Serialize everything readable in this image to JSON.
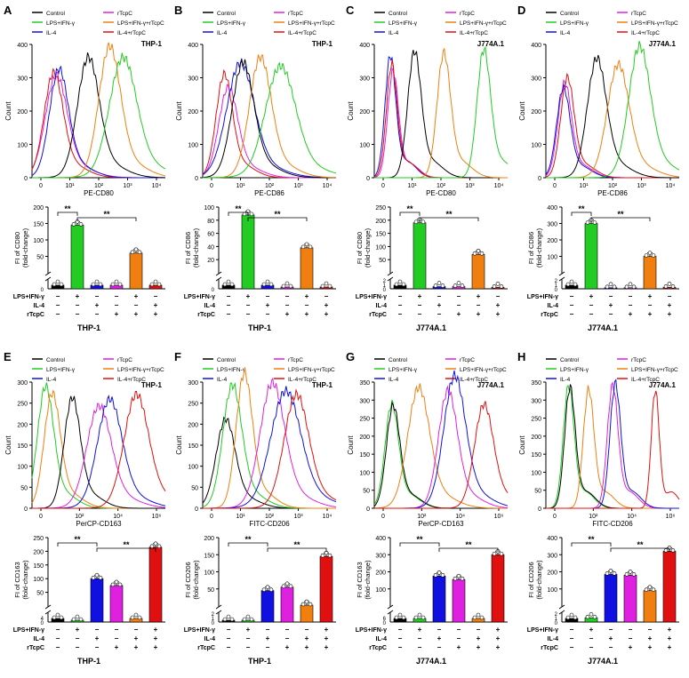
{
  "figure": {
    "colors": {
      "control": "#000000",
      "rtcpc": "#e020e0",
      "lps": "#22cc22",
      "lps_rtcpc": "#f07f10",
      "il4": "#1010e0",
      "il4_rtcpc": "#e01010"
    },
    "treatment_labels": [
      "LPS+IFN-γ",
      "IL-4",
      "rTcpC"
    ],
    "treatment_matrix": [
      [
        "−",
        "+",
        "−",
        "−",
        "+",
        "−"
      ],
      [
        "−",
        "−",
        "+",
        "−",
        "−",
        "+"
      ],
      [
        "−",
        "−",
        "−",
        "+",
        "+",
        "+"
      ]
    ],
    "treatment_matrix_m2": [
      [
        "−",
        "+",
        "−",
        "−",
        "−",
        "+"
      ],
      [
        "−",
        "−",
        "+",
        "−",
        "+",
        "+"
      ],
      [
        "−",
        "−",
        "−",
        "+",
        "+",
        "+"
      ]
    ],
    "significance": "**"
  },
  "chart_data": [
    {
      "panel": "A",
      "type": "line",
      "cell": "THP-1",
      "xlabel": "PE-CD80",
      "ylabel": "Count",
      "ylim": [
        0,
        400
      ],
      "yticks": [
        "0",
        "100",
        "200",
        "300",
        "400"
      ],
      "xticks": [
        "0",
        "10¹",
        "10²",
        "10³",
        "10⁴"
      ],
      "legend": [
        {
          "name": "Control",
          "color": "#000000"
        },
        {
          "name": "rTcpC",
          "color": "#e020e0"
        },
        {
          "name": "LPS+IFN-γ",
          "color": "#22cc22"
        },
        {
          "name": "LPS+IFN-γ+rTcpC",
          "color": "#f07f10"
        },
        {
          "name": "IL-4",
          "color": "#1010e0"
        },
        {
          "name": "IL-4+rTcpC",
          "color": "#e01010"
        }
      ],
      "peaks": [
        {
          "color": "#e020e0",
          "pos": 0.18,
          "h": 280,
          "w": 0.08
        },
        {
          "color": "#e01010",
          "pos": 0.16,
          "h": 290,
          "w": 0.07
        },
        {
          "color": "#1010e0",
          "pos": 0.2,
          "h": 300,
          "w": 0.07
        },
        {
          "color": "#000000",
          "pos": 0.42,
          "h": 330,
          "w": 0.08
        },
        {
          "color": "#f07f10",
          "pos": 0.58,
          "h": 360,
          "w": 0.08
        },
        {
          "color": "#22cc22",
          "pos": 0.68,
          "h": 325,
          "w": 0.1
        }
      ]
    },
    {
      "panel": "A",
      "type": "bar",
      "cell": "THP-1",
      "ylabel": "FI of CD80\n(fold-change)",
      "yticks_top": [
        "50",
        "100",
        "150",
        "200"
      ],
      "ylim_top": [
        0,
        200
      ],
      "yticks_bottom": [
        "0"
      ],
      "values": [
        1,
        145,
        1,
        1,
        60,
        1
      ],
      "sig": [
        {
          "from": 0,
          "to": 1,
          "label": "**"
        },
        {
          "from": 1,
          "to": 4,
          "label": "**"
        }
      ]
    },
    {
      "panel": "B",
      "type": "line",
      "cell": "THP-1",
      "xlabel": "PE-CD86",
      "ylabel": "Count",
      "ylim": [
        0,
        400
      ],
      "yticks": [
        "0",
        "100",
        "200",
        "300",
        "400"
      ],
      "xticks": [
        "0",
        "10¹",
        "10²",
        "10³",
        "10⁴"
      ],
      "legend": [
        {
          "name": "Control",
          "color": "#000000"
        },
        {
          "name": "rTcpC",
          "color": "#e020e0"
        },
        {
          "name": "LPS+IFN-γ",
          "color": "#22cc22"
        },
        {
          "name": "LPS+IFN-γ+rTcpC",
          "color": "#f07f10"
        },
        {
          "name": "IL-4",
          "color": "#1010e0"
        },
        {
          "name": "IL-4+rTcpC",
          "color": "#e01010"
        }
      ],
      "peaks": [
        {
          "color": "#e01010",
          "pos": 0.16,
          "h": 290,
          "w": 0.06
        },
        {
          "color": "#e020e0",
          "pos": 0.19,
          "h": 250,
          "w": 0.07
        },
        {
          "color": "#1010e0",
          "pos": 0.28,
          "h": 310,
          "w": 0.1
        },
        {
          "color": "#000000",
          "pos": 0.3,
          "h": 315,
          "w": 0.08
        },
        {
          "color": "#f07f10",
          "pos": 0.43,
          "h": 330,
          "w": 0.08
        },
        {
          "color": "#22cc22",
          "pos": 0.58,
          "h": 300,
          "w": 0.11
        }
      ]
    },
    {
      "panel": "B",
      "type": "bar",
      "cell": "THP-1",
      "ylabel": "FI of CD86\n(fold-change)",
      "yticks_top": [
        "20",
        "40",
        "60",
        "80",
        "100"
      ],
      "ylim_top": [
        0,
        100
      ],
      "yticks_bottom": [
        "0"
      ],
      "values": [
        1,
        88,
        1,
        0.5,
        38,
        0.5
      ],
      "sig": [
        {
          "from": 0,
          "to": 1,
          "label": "**"
        },
        {
          "from": 1,
          "to": 4,
          "label": "**"
        }
      ]
    },
    {
      "panel": "C",
      "type": "line",
      "cell": "J774A.1",
      "xlabel": "PE-CD80",
      "ylabel": "Count",
      "ylim": [
        0,
        400
      ],
      "yticks": [
        "0",
        "100",
        "200",
        "300",
        "400"
      ],
      "xticks": [
        "0",
        "10¹",
        "10²",
        "10³",
        "10⁴"
      ],
      "legend": [
        {
          "name": "Control",
          "color": "#000000"
        },
        {
          "name": "rTcpC",
          "color": "#e020e0"
        },
        {
          "name": "LPS+IFN-γ",
          "color": "#22cc22"
        },
        {
          "name": "LPS+IFN-γ+rTcpC",
          "color": "#f07f10"
        },
        {
          "name": "IL-4",
          "color": "#1010e0"
        },
        {
          "name": "IL-4+rTcpC",
          "color": "#e01010"
        }
      ],
      "peaks": [
        {
          "color": "#1010e0",
          "pos": 0.12,
          "h": 355,
          "w": 0.04
        },
        {
          "color": "#e020e0",
          "pos": 0.14,
          "h": 310,
          "w": 0.04
        },
        {
          "color": "#e01010",
          "pos": 0.13,
          "h": 330,
          "w": 0.04
        },
        {
          "color": "#000000",
          "pos": 0.3,
          "h": 360,
          "w": 0.05
        },
        {
          "color": "#f07f10",
          "pos": 0.52,
          "h": 355,
          "w": 0.05
        },
        {
          "color": "#22cc22",
          "pos": 0.82,
          "h": 365,
          "w": 0.05
        }
      ]
    },
    {
      "panel": "C",
      "type": "bar",
      "cell": "J774A.1",
      "ylabel": "FI of CD80\n(fold-change)",
      "yticks_top": [
        "50",
        "100",
        "150",
        "200",
        "250"
      ],
      "ylim_top": [
        0,
        250
      ],
      "yticks_bottom": [
        "0",
        "1",
        "2"
      ],
      "values": [
        1,
        190,
        0.6,
        0.6,
        70,
        0.4
      ],
      "sig": [
        {
          "from": 0,
          "to": 1,
          "label": "**"
        },
        {
          "from": 1,
          "to": 4,
          "label": "**"
        }
      ]
    },
    {
      "panel": "D",
      "type": "line",
      "cell": "J774A.1",
      "xlabel": "PE-CD86",
      "ylabel": "Count",
      "ylim": [
        0,
        400
      ],
      "yticks": [
        "0",
        "100",
        "200",
        "300",
        "400"
      ],
      "xticks": [
        "0",
        "10¹",
        "10²",
        "10³",
        "10⁴"
      ],
      "legend": [
        {
          "name": "Control",
          "color": "#000000"
        },
        {
          "name": "rTcpC",
          "color": "#e020e0"
        },
        {
          "name": "LPS+IFN-γ",
          "color": "#22cc22"
        },
        {
          "name": "LPS+IFN-γ+rTcpC",
          "color": "#f07f10"
        },
        {
          "name": "IL-4",
          "color": "#1010e0"
        },
        {
          "name": "IL-4+rTcpC",
          "color": "#e01010"
        }
      ],
      "peaks": [
        {
          "color": "#e020e0",
          "pos": 0.14,
          "h": 270,
          "w": 0.05
        },
        {
          "color": "#1010e0",
          "pos": 0.13,
          "h": 255,
          "w": 0.05
        },
        {
          "color": "#e01010",
          "pos": 0.16,
          "h": 285,
          "w": 0.05
        },
        {
          "color": "#000000",
          "pos": 0.38,
          "h": 330,
          "w": 0.07
        },
        {
          "color": "#f07f10",
          "pos": 0.54,
          "h": 310,
          "w": 0.08
        },
        {
          "color": "#22cc22",
          "pos": 0.7,
          "h": 360,
          "w": 0.08
        }
      ]
    },
    {
      "panel": "D",
      "type": "bar",
      "cell": "J774A.1",
      "ylabel": "FI of CD86\n(fold-change)",
      "yticks_top": [
        "100",
        "200",
        "300",
        "400"
      ],
      "ylim_top": [
        0,
        400
      ],
      "yticks_bottom": [
        "0",
        "1",
        "2"
      ],
      "values": [
        1,
        300,
        0.3,
        0.3,
        100,
        0.4
      ],
      "sig": [
        {
          "from": 0,
          "to": 1,
          "label": "**"
        },
        {
          "from": 1,
          "to": 4,
          "label": "**"
        }
      ]
    },
    {
      "panel": "E",
      "type": "line",
      "cell": "THP-1",
      "xlabel": "PerCP-CD163",
      "ylabel": "Count",
      "ylim": [
        0,
        300
      ],
      "yticks": [
        "0",
        "50",
        "100",
        "150",
        "200",
        "250",
        "300"
      ],
      "xticks": [
        "0",
        "10²",
        "10⁴",
        "10⁶"
      ],
      "legend": [
        {
          "name": "Control",
          "color": "#000000"
        },
        {
          "name": "rTcpC",
          "color": "#e020e0"
        },
        {
          "name": "LPS+IFN-γ",
          "color": "#22cc22"
        },
        {
          "name": "LPS+IFN-γ+rTcpC",
          "color": "#f07f10"
        },
        {
          "name": "IL-4",
          "color": "#1010e0"
        },
        {
          "name": "IL-4+rTcpC",
          "color": "#e01010"
        }
      ],
      "peaks": [
        {
          "color": "#22cc22",
          "pos": 0.1,
          "h": 270,
          "w": 0.06
        },
        {
          "color": "#f07f10",
          "pos": 0.15,
          "h": 255,
          "w": 0.06
        },
        {
          "color": "#000000",
          "pos": 0.3,
          "h": 245,
          "w": 0.06
        },
        {
          "color": "#e020e0",
          "pos": 0.5,
          "h": 220,
          "w": 0.09
        },
        {
          "color": "#1010e0",
          "pos": 0.58,
          "h": 235,
          "w": 0.09
        },
        {
          "color": "#e01010",
          "pos": 0.78,
          "h": 245,
          "w": 0.09
        }
      ]
    },
    {
      "panel": "E",
      "type": "bar",
      "cell": "THP-1",
      "ylabel": "FI of CD163\n(fold-change)",
      "yticks_top": [
        "50",
        "100",
        "150",
        "200",
        "250"
      ],
      "ylim_top": [
        0,
        250
      ],
      "yticks_bottom": [
        "0",
        "4"
      ],
      "values": [
        1,
        0.5,
        100,
        75,
        1,
        215
      ],
      "sig": [
        {
          "from": 0,
          "to": 2,
          "label": "**"
        },
        {
          "from": 2,
          "to": 5,
          "label": "**"
        }
      ]
    },
    {
      "panel": "F",
      "type": "line",
      "cell": "THP-1",
      "xlabel": "FITC-CD206",
      "ylabel": "Count",
      "ylim": [
        0,
        300
      ],
      "yticks": [
        "0",
        "50",
        "100",
        "150",
        "200",
        "250",
        "300"
      ],
      "xticks": [
        "0",
        "10¹",
        "10²",
        "10³",
        "10⁴"
      ],
      "legend": [
        {
          "name": "Control",
          "color": "#000000"
        },
        {
          "name": "rTcpC",
          "color": "#e020e0"
        },
        {
          "name": "LPS+IFN-γ",
          "color": "#22cc22"
        },
        {
          "name": "LPS+IFN-γ+rTcpC",
          "color": "#f07f10"
        },
        {
          "name": "IL-4",
          "color": "#1010e0"
        },
        {
          "name": "IL-4+rTcpC",
          "color": "#e01010"
        }
      ],
      "peaks": [
        {
          "color": "#000000",
          "pos": 0.17,
          "h": 195,
          "w": 0.07
        },
        {
          "color": "#22cc22",
          "pos": 0.22,
          "h": 270,
          "w": 0.07
        },
        {
          "color": "#f07f10",
          "pos": 0.31,
          "h": 300,
          "w": 0.06
        },
        {
          "color": "#e020e0",
          "pos": 0.52,
          "h": 270,
          "w": 0.09
        },
        {
          "color": "#1010e0",
          "pos": 0.62,
          "h": 250,
          "w": 0.11
        },
        {
          "color": "#e01010",
          "pos": 0.7,
          "h": 245,
          "w": 0.09
        }
      ]
    },
    {
      "panel": "F",
      "type": "bar",
      "cell": "THP-1",
      "ylabel": "FI of CD206\n(fold-change)",
      "yticks_top": [
        "50",
        "100",
        "150",
        "200"
      ],
      "ylim_top": [
        0,
        200
      ],
      "yticks_bottom": [
        "0",
        "1",
        "2"
      ],
      "values": [
        0.5,
        0.5,
        45,
        55,
        2.5,
        145
      ],
      "sig": [
        {
          "from": 0,
          "to": 2,
          "label": "**"
        },
        {
          "from": 2,
          "to": 5,
          "label": "**"
        }
      ]
    },
    {
      "panel": "G",
      "type": "line",
      "cell": "J774A.1",
      "xlabel": "PerCP-CD163",
      "ylabel": "Count",
      "ylim": [
        0,
        350
      ],
      "yticks": [
        "0",
        "50",
        "100",
        "150",
        "200",
        "250",
        "300",
        "350"
      ],
      "xticks": [
        "0",
        "10²",
        "10⁴",
        "10⁶"
      ],
      "legend": [
        {
          "name": "Control",
          "color": "#000000"
        },
        {
          "name": "rTcpC",
          "color": "#e020e0"
        },
        {
          "name": "LPS+IFN-γ",
          "color": "#22cc22"
        },
        {
          "name": "LPS+IFN-γ+rTcpC",
          "color": "#f07f10"
        },
        {
          "name": "IL-4",
          "color": "#1010e0"
        },
        {
          "name": "IL-4+rTcpC",
          "color": "#e01010"
        }
      ],
      "peaks": [
        {
          "color": "#22cc22",
          "pos": 0.13,
          "h": 275,
          "w": 0.05
        },
        {
          "color": "#000000",
          "pos": 0.14,
          "h": 270,
          "w": 0.05
        },
        {
          "color": "#f07f10",
          "pos": 0.33,
          "h": 305,
          "w": 0.08
        },
        {
          "color": "#e020e0",
          "pos": 0.55,
          "h": 300,
          "w": 0.07
        },
        {
          "color": "#1010e0",
          "pos": 0.6,
          "h": 335,
          "w": 0.08
        },
        {
          "color": "#e01010",
          "pos": 0.82,
          "h": 265,
          "w": 0.07
        }
      ]
    },
    {
      "panel": "G",
      "type": "bar",
      "cell": "J774A.1",
      "ylabel": "FI of CD163\n(fold-change)",
      "yticks_top": [
        "100",
        "200",
        "300",
        "400"
      ],
      "ylim_top": [
        0,
        400
      ],
      "yticks_bottom": [
        "0",
        "6"
      ],
      "values": [
        1,
        1,
        175,
        155,
        1,
        300
      ],
      "sig": [
        {
          "from": 0,
          "to": 2,
          "label": "**"
        },
        {
          "from": 2,
          "to": 5,
          "label": "**"
        }
      ]
    },
    {
      "panel": "H",
      "type": "line",
      "cell": "J774A.1",
      "xlabel": "FITC-CD206",
      "ylabel": "Count",
      "ylim": [
        0,
        350
      ],
      "yticks": [
        "0",
        "50",
        "100",
        "150",
        "200",
        "250",
        "300",
        "350"
      ],
      "xticks": [
        "0",
        "10²",
        "10⁴",
        "10⁶"
      ],
      "legend": [
        {
          "name": "Control",
          "color": "#000000"
        },
        {
          "name": "rTcpC",
          "color": "#e020e0"
        },
        {
          "name": "LPS+IFN-γ",
          "color": "#22cc22"
        },
        {
          "name": "LPS+IFN-γ+rTcpC",
          "color": "#f07f10"
        },
        {
          "name": "IL-4",
          "color": "#1010e0"
        },
        {
          "name": "IL-4+rTcpC",
          "color": "#e01010"
        }
      ],
      "peaks": [
        {
          "color": "#22cc22",
          "pos": 0.17,
          "h": 330,
          "w": 0.04
        },
        {
          "color": "#000000",
          "pos": 0.18,
          "h": 325,
          "w": 0.04
        },
        {
          "color": "#f07f10",
          "pos": 0.32,
          "h": 320,
          "w": 0.04
        },
        {
          "color": "#e020e0",
          "pos": 0.5,
          "h": 330,
          "w": 0.04
        },
        {
          "color": "#1010e0",
          "pos": 0.52,
          "h": 335,
          "w": 0.04
        },
        {
          "color": "#e01010",
          "pos": 0.82,
          "h": 325,
          "w": 0.03
        }
      ]
    },
    {
      "panel": "H",
      "type": "bar",
      "cell": "J774A.1",
      "ylabel": "FI of CD206\n(fold-change)",
      "yticks_top": [
        "100",
        "200",
        "300",
        "400"
      ],
      "ylim_top": [
        0,
        400
      ],
      "yticks_bottom": [
        "0",
        "1",
        "2"
      ],
      "values": [
        1,
        1.2,
        185,
        180,
        90,
        320
      ],
      "sig": [
        {
          "from": 0,
          "to": 2,
          "label": "**"
        },
        {
          "from": 2,
          "to": 5,
          "label": "**"
        }
      ]
    }
  ]
}
